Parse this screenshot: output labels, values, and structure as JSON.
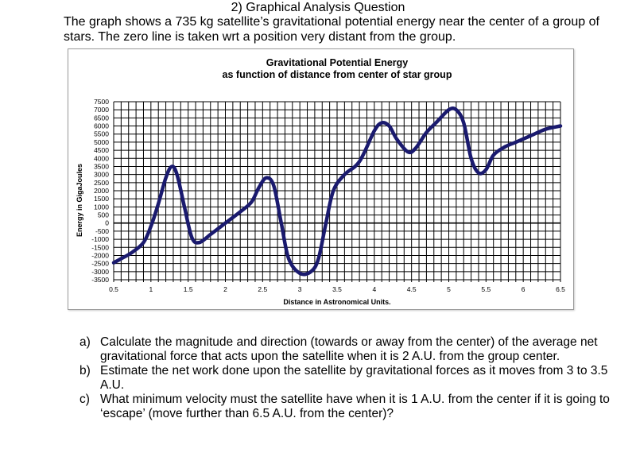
{
  "question": {
    "title": "2) Graphical Analysis Question",
    "intro": "The graph shows a 735 kg satellite’s gravitational potential energy near the center of a group of stars. The zero line is taken wrt a position very distant from the group."
  },
  "chart_data": {
    "type": "line",
    "title_line1": "Gravitational Potential Energy",
    "title_line2": "as function of distance from center of star group",
    "xlabel": "Distance in Astronomical Units.",
    "ylabel": "Energy in GigaJoules",
    "xlim": [
      0.5,
      6.5
    ],
    "ylim": [
      -3500,
      7500
    ],
    "x_tick_labels": [
      "0.5",
      "1",
      "1.5",
      "2",
      "2.5",
      "3",
      "3.5",
      "4",
      "4.5",
      "5",
      "5.5",
      "6",
      "6.5"
    ],
    "y_tick_labels": [
      "7500",
      "7000",
      "6500",
      "6000",
      "5500",
      "5000",
      "4500",
      "4000",
      "3500",
      "3000",
      "2500",
      "2000",
      "1500",
      "1000",
      "500",
      "0",
      "-500",
      "-1000",
      "-1500",
      "-2000",
      "-2500",
      "-3000",
      "-3500"
    ],
    "series": [
      {
        "name": "Potential Energy",
        "color": "#1a1a6e",
        "x": [
          0.5,
          0.6,
          0.75,
          0.9,
          1.0,
          1.1,
          1.2,
          1.28,
          1.35,
          1.45,
          1.55,
          1.65,
          1.8,
          2.0,
          2.2,
          2.35,
          2.45,
          2.55,
          2.65,
          2.75,
          2.85,
          3.0,
          3.15,
          3.25,
          3.35,
          3.45,
          3.6,
          3.8,
          4.0,
          4.1,
          4.2,
          4.3,
          4.45,
          4.55,
          4.7,
          4.85,
          5.0,
          5.1,
          5.2,
          5.3,
          5.4,
          5.5,
          5.6,
          5.75,
          5.9,
          6.1,
          6.3,
          6.5
        ],
        "y": [
          -2450,
          -2200,
          -1800,
          -1200,
          -200,
          1200,
          2800,
          3500,
          3000,
          1000,
          -900,
          -1200,
          -700,
          0,
          700,
          1300,
          2200,
          2800,
          2300,
          0,
          -2200,
          -3100,
          -3000,
          -2200,
          0,
          2000,
          3000,
          3800,
          5700,
          6200,
          6000,
          5200,
          4400,
          4600,
          5600,
          6300,
          7000,
          7000,
          6200,
          4000,
          3100,
          3300,
          4200,
          4700,
          5000,
          5400,
          5800,
          6000
        ]
      }
    ]
  },
  "questions": [
    {
      "letter": "a)",
      "text": "Calculate the magnitude and direction (towards or away from the center) of the average net gravitational force that acts upon the satellite when it is 2 A.U. from the group center."
    },
    {
      "letter": "b)",
      "text": "Estimate the net work done upon the satellite by gravitational forces as it moves from 3 to 3.5 A.U."
    },
    {
      "letter": "c)",
      "text": "What minimum velocity must the satellite have when it is 1 A.U. from the center if it is going to ‘escape’ (move further than 6.5 A.U. from the center)?"
    }
  ]
}
